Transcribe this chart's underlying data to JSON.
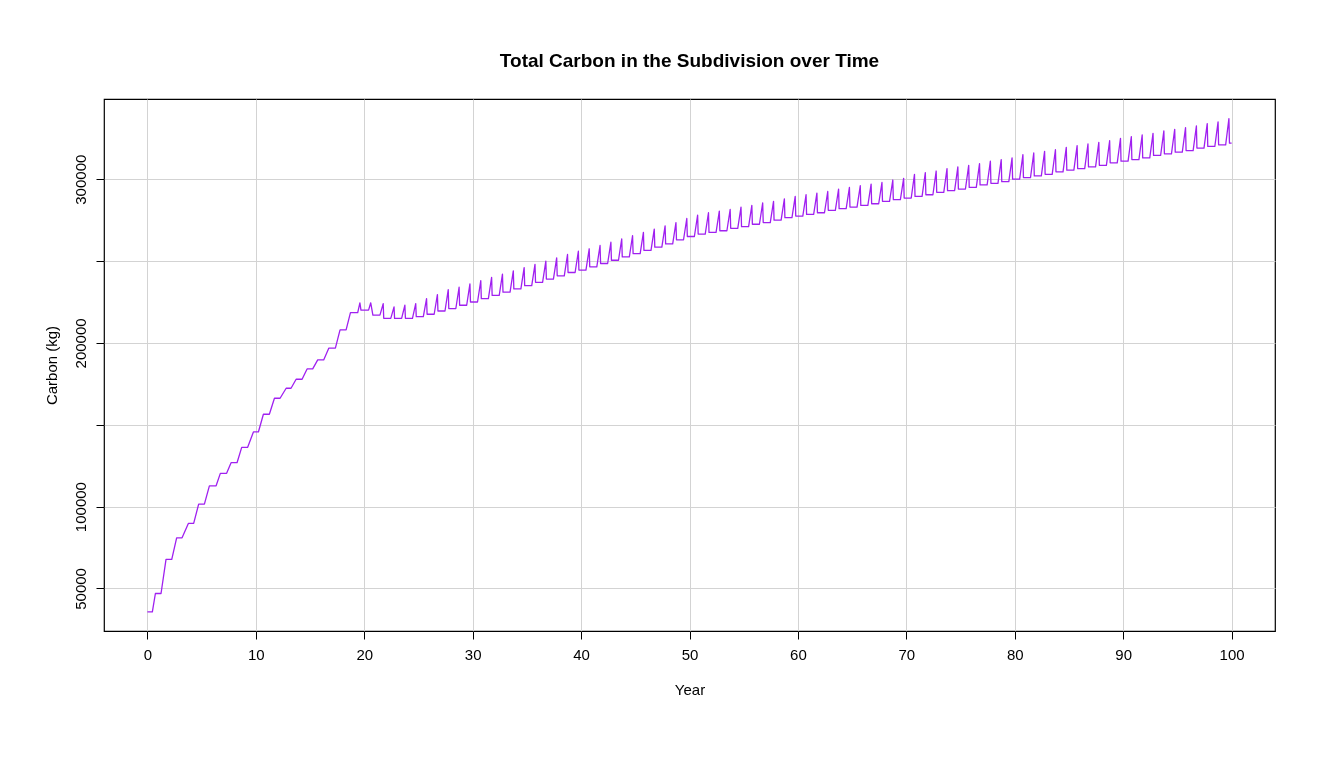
{
  "chart_data": {
    "type": "line",
    "title": "Total Carbon in the Subdivision over Time",
    "xlabel": "Year",
    "ylabel": "Carbon (kg)",
    "xlim": [
      -4,
      104
    ],
    "ylim": [
      24000,
      349000
    ],
    "xticks": [
      0,
      10,
      20,
      30,
      40,
      50,
      60,
      70,
      80,
      90,
      100
    ],
    "yticks": [
      50000,
      100000,
      {
        "value": 150000,
        "label": null
      },
      200000,
      {
        "value": 250000,
        "label": null
      },
      300000
    ],
    "grid": true,
    "series": [
      {
        "color": "#a020f0",
        "x": [
          0,
          0.46,
          0.74,
          1.26,
          1.72,
          2.25,
          2.7,
          3.2,
          3.78,
          4.27,
          4.73,
          5.26,
          5.72,
          6.34,
          6.73,
          7.31,
          7.72,
          8.27,
          8.7,
          9.25,
          9.78,
          10.24,
          10.7,
          11.25,
          11.72,
          12.24,
          12.8,
          13.25,
          13.72,
          14.27,
          14.73,
          15.25,
          15.71,
          16.26,
          16.73,
          17.34,
          17.77,
          18.33,
          18.73,
          19.4,
          19.6,
          19.7,
          20.4,
          20.6,
          20.8,
          21.45,
          21.75,
          21.8,
          22.45,
          22.75,
          22.8,
          23.45,
          23.75,
          23.8,
          24.45,
          24.75,
          24.8,
          25.45,
          25.75,
          25.8,
          26.45,
          26.75,
          26.8,
          27.45,
          27.75,
          27.8,
          28.45,
          28.75,
          28.8,
          29.45,
          29.75,
          29.8,
          30.45,
          30.75,
          30.8,
          31.45,
          31.75,
          31.8,
          32.45,
          32.75,
          32.8,
          33.45,
          33.75,
          33.8,
          34.45,
          34.75,
          34.8,
          35.45,
          35.75,
          35.8,
          36.45,
          36.75,
          36.8,
          37.45,
          37.75,
          37.8,
          38.45,
          38.75,
          38.8,
          39.45,
          39.75,
          39.8,
          40.45,
          40.75,
          40.8,
          41.45,
          41.75,
          41.8,
          42.45,
          42.75,
          42.8,
          43.45,
          43.75,
          43.8,
          44.45,
          44.75,
          44.8,
          45.45,
          45.75,
          45.8,
          46.45,
          46.75,
          46.8,
          47.45,
          47.75,
          47.8,
          48.45,
          48.75,
          48.8,
          49.45,
          49.75,
          49.8,
          50.45,
          50.75,
          50.8,
          51.45,
          51.75,
          51.8,
          52.45,
          52.75,
          52.8,
          53.45,
          53.75,
          53.8,
          54.45,
          54.75,
          54.8,
          55.45,
          55.75,
          55.8,
          56.45,
          56.75,
          56.8,
          57.45,
          57.75,
          57.8,
          58.45,
          58.75,
          58.8,
          59.45,
          59.75,
          59.8,
          60.45,
          60.75,
          60.8,
          61.45,
          61.75,
          61.8,
          62.45,
          62.75,
          62.8,
          63.45,
          63.75,
          63.8,
          64.45,
          64.75,
          64.8,
          65.45,
          65.75,
          65.8,
          66.45,
          66.75,
          66.8,
          67.45,
          67.75,
          67.8,
          68.45,
          68.75,
          68.8,
          69.45,
          69.75,
          69.8,
          70.45,
          70.75,
          70.8,
          71.45,
          71.75,
          71.8,
          72.45,
          72.75,
          72.8,
          73.45,
          73.75,
          73.8,
          74.45,
          74.75,
          74.8,
          75.45,
          75.75,
          75.8,
          76.45,
          76.75,
          76.8,
          77.45,
          77.75,
          77.8,
          78.45,
          78.75,
          78.8,
          79.45,
          79.75,
          79.8,
          80.45,
          80.75,
          80.8,
          81.45,
          81.75,
          81.8,
          82.45,
          82.75,
          82.8,
          83.45,
          83.75,
          83.8,
          84.45,
          84.75,
          84.8,
          85.45,
          85.75,
          85.8,
          86.45,
          86.75,
          86.8,
          87.45,
          87.75,
          87.8,
          88.45,
          88.75,
          88.8,
          89.45,
          89.75,
          89.8,
          90.45,
          90.75,
          90.8,
          91.45,
          91.75,
          91.8,
          92.45,
          92.75,
          92.8,
          93.45,
          93.75,
          93.8,
          94.45,
          94.75,
          94.8,
          95.45,
          95.75,
          95.8,
          96.45,
          96.75,
          96.8,
          97.45,
          97.75,
          97.8,
          98.45,
          98.75,
          98.8,
          99.45,
          99.75,
          99.8,
          100
        ],
        "values": [
          35700,
          35700,
          46900,
          46900,
          67700,
          67700,
          80900,
          80900,
          89700,
          89700,
          101500,
          101500,
          112700,
          112700,
          120300,
          120300,
          126800,
          126800,
          136200,
          136200,
          145600,
          145600,
          156400,
          156400,
          166200,
          166200,
          172300,
          172300,
          177800,
          177800,
          184100,
          184100,
          189600,
          189600,
          196800,
          196800,
          208000,
          208000,
          218500,
          218500,
          224500,
          220000,
          220000,
          224500,
          217000,
          217000,
          224000,
          215000,
          215000,
          222000,
          215000,
          215000,
          223000,
          215000,
          215000,
          224000,
          216000,
          216000,
          227000,
          217500,
          217500,
          229500,
          219500,
          219500,
          232500,
          221000,
          221000,
          234000,
          223000,
          223000,
          236000,
          225000,
          225000,
          238000,
          227000,
          227000,
          240000,
          229000,
          229000,
          242000,
          231000,
          231000,
          244000,
          233000,
          233000,
          246000,
          235000,
          235000,
          248000,
          237000,
          237000,
          250000,
          239000,
          239000,
          252000,
          241000,
          241000,
          254000,
          243000,
          243000,
          256000,
          244500,
          244500,
          257500,
          246500,
          246500,
          259500,
          248500,
          248500,
          261500,
          250500,
          250500,
          263500,
          252500,
          252500,
          265500,
          254500,
          254500,
          267500,
          256500,
          256500,
          269500,
          258500,
          258500,
          271500,
          260500,
          260500,
          273500,
          263000,
          263000,
          276000,
          265000,
          265000,
          278000,
          266500,
          266500,
          279500,
          267500,
          267500,
          280500,
          268500,
          268500,
          281500,
          270000,
          270000,
          283000,
          271000,
          271000,
          284000,
          272500,
          272500,
          285500,
          273500,
          273500,
          286500,
          275000,
          275000,
          288000,
          276500,
          276500,
          289500,
          277500,
          277500,
          290500,
          278500,
          278500,
          291500,
          279500,
          279500,
          292500,
          281000,
          281000,
          294000,
          282000,
          282000,
          295000,
          283000,
          283000,
          296000,
          284000,
          284000,
          297000,
          285000,
          285000,
          298000,
          286500,
          286500,
          299500,
          287500,
          287500,
          300500,
          288500,
          288500,
          303000,
          289500,
          289500,
          304000,
          290500,
          290500,
          305000,
          292000,
          292000,
          306500,
          293000,
          293000,
          307500,
          294000,
          294000,
          308500,
          295000,
          295000,
          309500,
          296500,
          296500,
          311000,
          297500,
          297500,
          312000,
          298500,
          298500,
          313000,
          300000,
          300000,
          315000,
          301000,
          301000,
          316000,
          302000,
          302000,
          317000,
          303000,
          303000,
          318000,
          304500,
          304500,
          319500,
          305500,
          305500,
          320500,
          306500,
          306500,
          321500,
          307500,
          307500,
          322500,
          308500,
          308500,
          323500,
          310000,
          310000,
          325000,
          311000,
          311000,
          326000,
          312000,
          312000,
          327000,
          313000,
          313000,
          328000,
          314500,
          314500,
          329500,
          315500,
          315500,
          330500,
          316500,
          316500,
          331500,
          317500,
          317500,
          332500,
          319000,
          319000,
          334000,
          320000,
          320000,
          335000,
          321000,
          321000,
          337000,
          322000,
          322000
        ]
      }
    ]
  }
}
